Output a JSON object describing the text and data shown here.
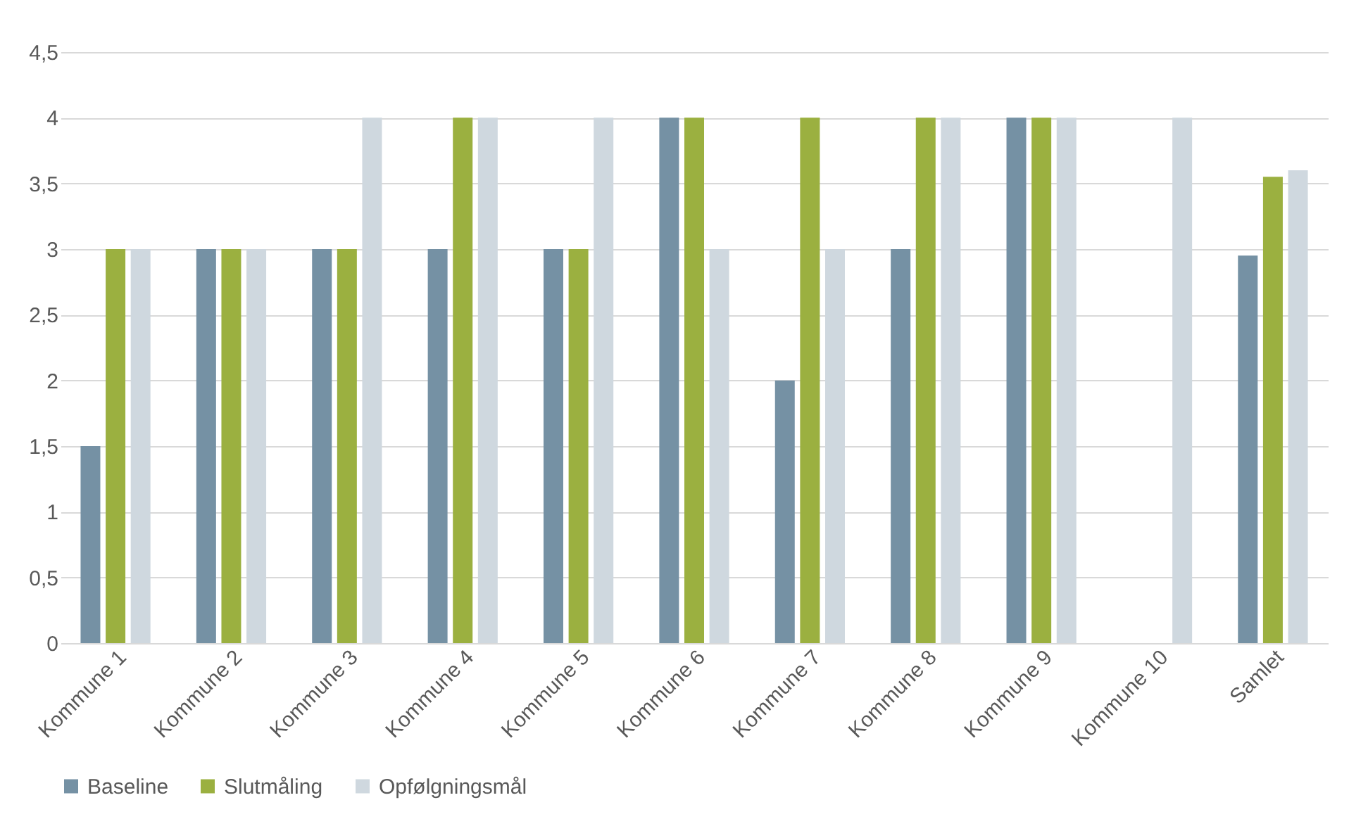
{
  "chart_data": {
    "type": "bar",
    "categories": [
      "Kommune 1",
      "Kommune 2",
      "Kommune 3",
      "Kommune 4",
      "Kommune 5",
      "Kommune 6",
      "Kommune 7",
      "Kommune 8",
      "Kommune 9",
      "Kommune 10",
      "Samlet"
    ],
    "series": [
      {
        "name": "Baseline",
        "color": "#7591a4",
        "values": [
          1.5,
          3,
          3,
          3,
          3,
          4,
          2,
          3,
          4,
          null,
          2.95
        ]
      },
      {
        "name": "Slutmåling",
        "color": "#9bb040",
        "values": [
          3,
          3,
          3,
          4,
          3,
          4,
          4,
          4,
          4,
          null,
          3.55
        ]
      },
      {
        "name": "Opfølgningsmål",
        "color": "#cfd8df",
        "values": [
          3,
          3,
          4,
          4,
          4,
          3,
          3,
          4,
          4,
          4,
          3.6
        ]
      }
    ],
    "ylim": [
      0,
      4.5
    ],
    "yticks": [
      {
        "value": 0,
        "label": "0"
      },
      {
        "value": 0.5,
        "label": "0,5"
      },
      {
        "value": 1,
        "label": "1"
      },
      {
        "value": 1.5,
        "label": "1,5"
      },
      {
        "value": 2,
        "label": "2"
      },
      {
        "value": 2.5,
        "label": "2,5"
      },
      {
        "value": 3,
        "label": "3"
      },
      {
        "value": 3.5,
        "label": "3,5"
      },
      {
        "value": 4,
        "label": "4"
      },
      {
        "value": 4.5,
        "label": "4,5"
      }
    ],
    "grid": "y",
    "legend": "bottom"
  }
}
